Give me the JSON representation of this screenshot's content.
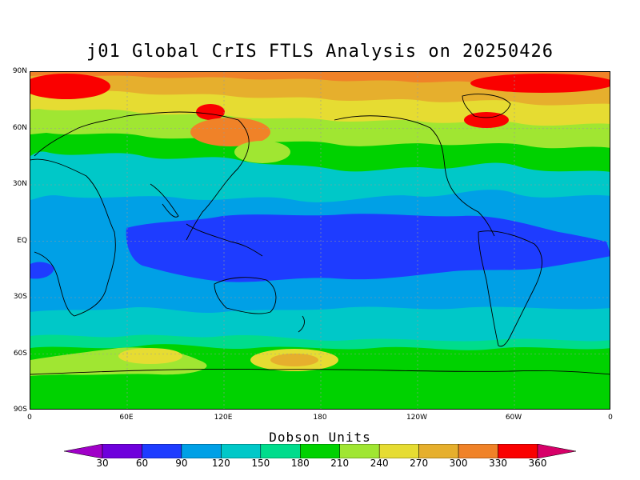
{
  "title": "j01 Global CrIS FTLS Analysis on 20250426",
  "latitude_labels": [
    "90N",
    "60N",
    "30N",
    "EQ",
    "30S",
    "60S",
    "90S"
  ],
  "longitude_labels": [
    "0",
    "60E",
    "120E",
    "180",
    "120W",
    "60W",
    "0"
  ],
  "colorbar": {
    "title": "Dobson Units",
    "levels": [
      "30",
      "60",
      "90",
      "120",
      "150",
      "180",
      "210",
      "240",
      "270",
      "300",
      "330",
      "360"
    ],
    "colors": [
      "#a000c8",
      "#6e00dc",
      "#1e3cff",
      "#00a0e6",
      "#00c8c8",
      "#00dc8c",
      "#00d200",
      "#a0e632",
      "#e6dc32",
      "#e6af2d",
      "#f08228",
      "#fa0000",
      "#d70069"
    ]
  }
}
